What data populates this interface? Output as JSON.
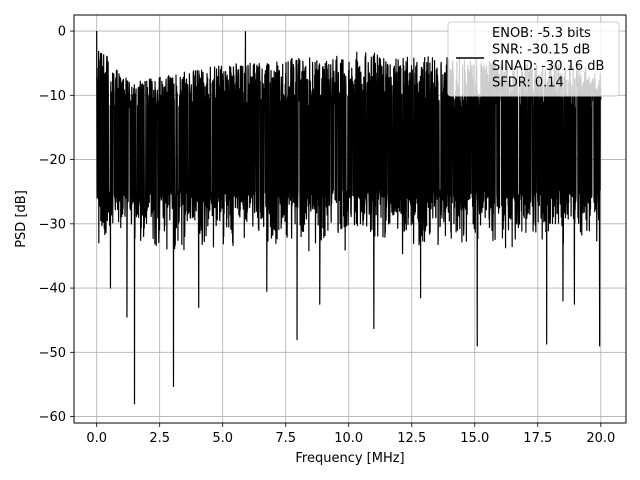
{
  "chart_data": {
    "type": "line",
    "title": "",
    "xlabel": "Frequency [MHz]",
    "ylabel": "PSD [dB]",
    "xlim": [
      -0.9,
      21.0
    ],
    "ylim": [
      -61.0,
      2.5
    ],
    "xticks": [
      0.0,
      2.5,
      5.0,
      7.5,
      10.0,
      12.5,
      15.0,
      17.5,
      20.0
    ],
    "xtick_labels": [
      "0.0",
      "2.5",
      "5.0",
      "7.5",
      "10.0",
      "12.5",
      "15.0",
      "17.5",
      "20.0"
    ],
    "yticks": [
      0,
      -10,
      -20,
      -30,
      -40,
      -50,
      -60
    ],
    "ytick_labels": [
      "0",
      "−10",
      "−20",
      "−30",
      "−40",
      "−50",
      "−60"
    ],
    "grid": true,
    "legend_position": "top-right",
    "legend_entries": [
      "ENOB: -5.3 bits",
      "SNR: -30.15 dB",
      "SINAD: -30.16 dB",
      "SFDR: 0.14"
    ],
    "series": [
      {
        "color": "#000000",
        "x_range": [
          0.0,
          20.0
        ],
        "envelope_top_db": [
          -2,
          -8,
          -7,
          -6,
          -5,
          -5,
          -4,
          -4,
          -3,
          -4,
          -4,
          -4,
          -5,
          -5,
          -5,
          -6
        ],
        "envelope_upper_band_db": [
          -12,
          -12
        ],
        "envelope_lower_band_db": [
          -28,
          -28
        ],
        "notable_points": [
          {
            "x": 0.0,
            "y": 0.0
          },
          {
            "x": 5.9,
            "y": -0.1
          },
          {
            "x": 1.5,
            "y": -58.0
          },
          {
            "x": 3.05,
            "y": -55.3
          },
          {
            "x": 7.95,
            "y": -48.0
          },
          {
            "x": 11.0,
            "y": -46.3
          },
          {
            "x": 15.1,
            "y": -49.0
          },
          {
            "x": 17.85,
            "y": -48.7
          },
          {
            "x": 19.95,
            "y": -49.0
          },
          {
            "x": 1.2,
            "y": -44.5
          },
          {
            "x": 0.55,
            "y": -40.0
          },
          {
            "x": 4.05,
            "y": -43.0
          },
          {
            "x": 6.75,
            "y": -40.5
          },
          {
            "x": 8.85,
            "y": -42.5
          },
          {
            "x": 12.85,
            "y": -41.5
          },
          {
            "x": 18.5,
            "y": -42.0
          },
          {
            "x": 18.95,
            "y": -42.5
          }
        ]
      }
    ]
  }
}
